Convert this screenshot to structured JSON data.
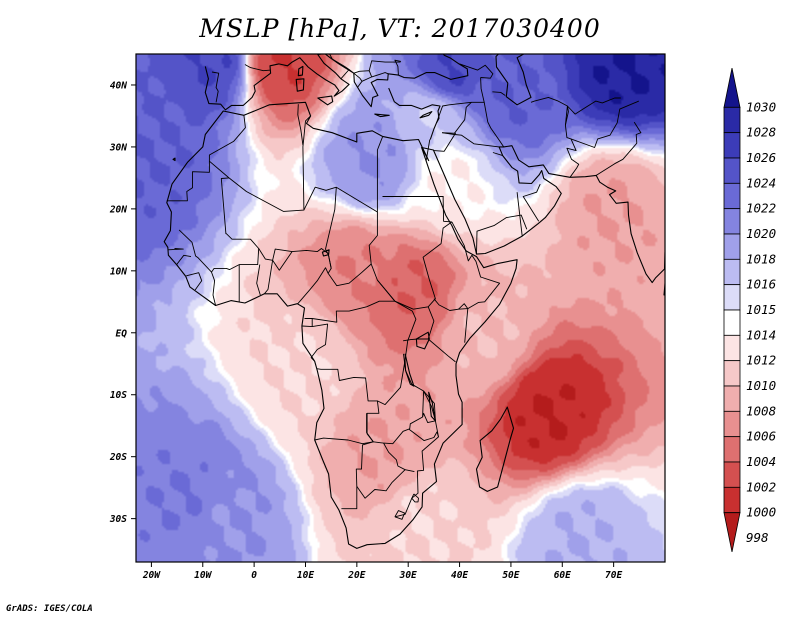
{
  "title": "MSLP [hPa], VT: 2017030400",
  "footer": "GrADS: IGES/COLA",
  "map": {
    "lon_range": [
      -23,
      80
    ],
    "lat_range": [
      -37,
      45
    ],
    "x_ticks": [
      {
        "lon": -20,
        "label": "20W"
      },
      {
        "lon": -10,
        "label": "10W"
      },
      {
        "lon": 0,
        "label": "0"
      },
      {
        "lon": 10,
        "label": "10E"
      },
      {
        "lon": 20,
        "label": "20E"
      },
      {
        "lon": 30,
        "label": "30E"
      },
      {
        "lon": 40,
        "label": "40E"
      },
      {
        "lon": 50,
        "label": "50E"
      },
      {
        "lon": 60,
        "label": "60E"
      },
      {
        "lon": 70,
        "label": "70E"
      }
    ],
    "y_ticks": [
      {
        "lat": 40,
        "label": "40N"
      },
      {
        "lat": 30,
        "label": "30N"
      },
      {
        "lat": 20,
        "label": "20N"
      },
      {
        "lat": 10,
        "label": "10N"
      },
      {
        "lat": 0,
        "label": "EQ"
      },
      {
        "lat": -10,
        "label": "10S"
      },
      {
        "lat": -20,
        "label": "20S"
      },
      {
        "lat": -30,
        "label": "30S"
      }
    ]
  },
  "colorbar": {
    "levels": [
      "998",
      "1000",
      "1002",
      "1004",
      "1006",
      "1008",
      "1010",
      "1012",
      "1014",
      "1015",
      "1016",
      "1018",
      "1020",
      "1022",
      "1024",
      "1026",
      "1028",
      "1030"
    ],
    "colors_top_to_bottom": [
      "#14148c",
      "#2a2aa6",
      "#3c3cb8",
      "#5454c8",
      "#6a6ad6",
      "#8484e0",
      "#a0a0ea",
      "#bcbcf2",
      "#dcdcf8",
      "#ffffff",
      "#fce4e4",
      "#f6c8c8",
      "#f0aeae",
      "#e89090",
      "#de7070",
      "#d45050",
      "#c83030",
      "#b41c1c"
    ]
  },
  "pressure_centers": [
    {
      "lon": -20,
      "lat": 30,
      "value": 1024
    },
    {
      "lon": -8,
      "lat": 44,
      "value": 1026
    },
    {
      "lon": 72,
      "lat": 43,
      "value": 1030
    },
    {
      "lon": 38,
      "lat": 42,
      "value": 1026
    },
    {
      "lon": 50,
      "lat": 39,
      "value": 1024
    },
    {
      "lon": 23,
      "lat": 28,
      "value": 1020
    },
    {
      "lon": 38,
      "lat": 25,
      "value": 1014
    },
    {
      "lon": -13,
      "lat": -27,
      "value": 1022
    },
    {
      "lon": -6,
      "lat": -30,
      "value": 1020
    },
    {
      "lon": 63,
      "lat": -33,
      "value": 1018
    },
    {
      "lon": 5,
      "lat": 44,
      "value": 1002
    },
    {
      "lon": 57,
      "lat": -13,
      "value": 1000
    },
    {
      "lon": 31,
      "lat": 7,
      "value": 1004
    },
    {
      "lon": 20,
      "lat": 10,
      "value": 1006
    },
    {
      "lon": 35,
      "lat": 35,
      "value": 1016
    },
    {
      "lon": 70,
      "lat": 20,
      "value": 1008
    },
    {
      "lon": 25,
      "lat": -20,
      "value": 1008
    },
    {
      "lon": 45,
      "lat": 0,
      "value": 1010
    },
    {
      "lon": 10,
      "lat": -5,
      "value": 1012
    },
    {
      "lon": 32,
      "lat": -30,
      "value": 1012
    }
  ],
  "colors": {
    "coast": "#000000",
    "frame": "#000000",
    "background": "#ffffff"
  }
}
